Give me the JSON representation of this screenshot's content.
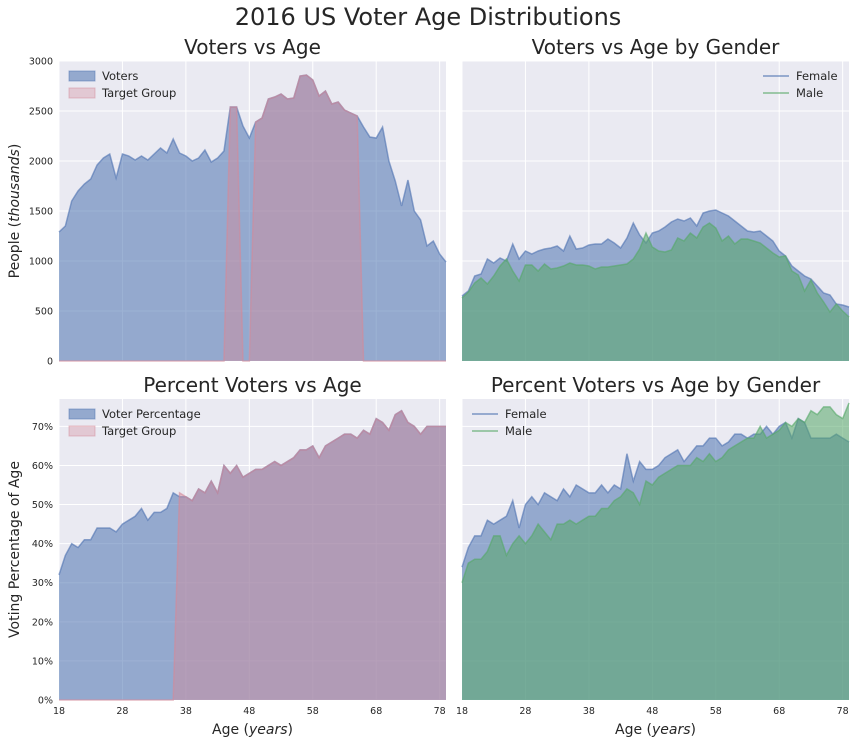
{
  "figure": {
    "suptitle": "2016 US Voter Age Distributions"
  },
  "colors": {
    "blue": "#4c72b0",
    "red": "#d48a9a",
    "green": "#55a868",
    "panel_bg": "#eaeaf2",
    "grid": "#ffffff"
  },
  "chart_data": [
    {
      "id": "voters",
      "type": "area",
      "title": "Voters vs Age",
      "ylabel": "People (thousands)",
      "xlim": [
        18,
        79
      ],
      "ylim": [
        0,
        3000
      ],
      "yticks": [
        0,
        500,
        1000,
        1500,
        2000,
        2500,
        3000
      ],
      "ytick_labels": [
        "0",
        "500",
        "1000",
        "1500",
        "2000",
        "2500",
        "3000"
      ],
      "legend": "top-left",
      "x": [
        18,
        19,
        20,
        21,
        22,
        23,
        24,
        25,
        26,
        27,
        28,
        29,
        30,
        31,
        32,
        33,
        34,
        35,
        36,
        37,
        38,
        39,
        40,
        41,
        42,
        43,
        44,
        45,
        46,
        47,
        48,
        49,
        50,
        51,
        52,
        53,
        54,
        55,
        56,
        57,
        58,
        59,
        60,
        61,
        62,
        63,
        64,
        65,
        66,
        67,
        68,
        69,
        70,
        71,
        72,
        73,
        74,
        75,
        76,
        77,
        78,
        79
      ],
      "series": [
        {
          "name": "Voters",
          "color": "blue",
          "values": [
            1290,
            1350,
            1600,
            1700,
            1770,
            1820,
            1960,
            2030,
            2070,
            1830,
            2070,
            2050,
            2010,
            2050,
            2010,
            2070,
            2130,
            2080,
            2220,
            2080,
            2050,
            2000,
            2030,
            2110,
            1990,
            2030,
            2100,
            2540,
            2540,
            2350,
            2230,
            2390,
            2430,
            2620,
            2640,
            2670,
            2620,
            2630,
            2850,
            2860,
            2810,
            2650,
            2700,
            2570,
            2590,
            2510,
            2480,
            2450,
            2340,
            2240,
            2230,
            2340,
            2000,
            1800,
            1550,
            1810,
            1500,
            1410,
            1150,
            1200,
            1070,
            990
          ]
        },
        {
          "name": "Target Group",
          "color": "red",
          "values": [
            0,
            0,
            0,
            0,
            0,
            0,
            0,
            0,
            0,
            0,
            0,
            0,
            0,
            0,
            0,
            0,
            0,
            0,
            0,
            0,
            0,
            0,
            0,
            0,
            0,
            0,
            0,
            2540,
            2540,
            0,
            0,
            2390,
            2430,
            2620,
            2640,
            2670,
            2620,
            2630,
            2850,
            2860,
            2810,
            2650,
            2700,
            2570,
            2590,
            2510,
            2480,
            2450,
            0,
            0,
            0,
            0,
            0,
            0,
            0,
            0,
            0,
            0,
            0,
            0,
            0,
            0
          ]
        }
      ]
    },
    {
      "id": "voters_gender",
      "type": "area",
      "title": "Voters vs Age by Gender",
      "xlim": [
        18,
        79
      ],
      "ylim": [
        0,
        3000
      ],
      "legend": "top-right",
      "x": [
        18,
        19,
        20,
        21,
        22,
        23,
        24,
        25,
        26,
        27,
        28,
        29,
        30,
        31,
        32,
        33,
        34,
        35,
        36,
        37,
        38,
        39,
        40,
        41,
        42,
        43,
        44,
        45,
        46,
        47,
        48,
        49,
        50,
        51,
        52,
        53,
        54,
        55,
        56,
        57,
        58,
        59,
        60,
        61,
        62,
        63,
        64,
        65,
        66,
        67,
        68,
        69,
        70,
        71,
        72,
        73,
        74,
        75,
        76,
        77,
        78,
        79
      ],
      "series": [
        {
          "name": "Female",
          "color": "blue",
          "values": [
            650,
            700,
            850,
            870,
            1020,
            980,
            1030,
            1000,
            1170,
            1020,
            1100,
            1070,
            1100,
            1120,
            1130,
            1150,
            1100,
            1250,
            1120,
            1130,
            1160,
            1170,
            1170,
            1220,
            1180,
            1130,
            1230,
            1380,
            1260,
            1180,
            1280,
            1300,
            1340,
            1390,
            1420,
            1400,
            1430,
            1350,
            1480,
            1500,
            1510,
            1480,
            1450,
            1400,
            1350,
            1300,
            1290,
            1300,
            1250,
            1200,
            1100,
            1050,
            950,
            900,
            850,
            820,
            750,
            680,
            660,
            570,
            560,
            540
          ]
        },
        {
          "name": "Male",
          "color": "green",
          "values": [
            630,
            690,
            780,
            830,
            770,
            850,
            950,
            1020,
            900,
            800,
            960,
            960,
            900,
            970,
            920,
            930,
            950,
            980,
            960,
            960,
            950,
            920,
            940,
            940,
            950,
            960,
            970,
            1020,
            1120,
            1280,
            1140,
            1100,
            1090,
            1110,
            1230,
            1200,
            1280,
            1230,
            1340,
            1380,
            1330,
            1200,
            1250,
            1170,
            1220,
            1220,
            1200,
            1180,
            1130,
            1080,
            1040,
            1050,
            900,
            860,
            700,
            810,
            680,
            590,
            490,
            570,
            500,
            440
          ]
        }
      ]
    },
    {
      "id": "percent",
      "type": "area",
      "title": "Percent Voters vs Age",
      "ylabel": "Voting Percentage of Age",
      "xlabel": "Age (years)",
      "xlim": [
        18,
        79
      ],
      "ylim": [
        0,
        77
      ],
      "xticks": [
        18,
        28,
        38,
        48,
        58,
        68,
        78
      ],
      "xtick_labels": [
        "18",
        "28",
        "38",
        "48",
        "58",
        "68",
        "78"
      ],
      "yticks": [
        0,
        10,
        20,
        30,
        40,
        50,
        60,
        70
      ],
      "ytick_labels": [
        "0%",
        "10%",
        "20%",
        "30%",
        "40%",
        "50%",
        "60%",
        "70%"
      ],
      "legend": "top-left",
      "x": [
        18,
        19,
        20,
        21,
        22,
        23,
        24,
        25,
        26,
        27,
        28,
        29,
        30,
        31,
        32,
        33,
        34,
        35,
        36,
        37,
        38,
        39,
        40,
        41,
        42,
        43,
        44,
        45,
        46,
        47,
        48,
        49,
        50,
        51,
        52,
        53,
        54,
        55,
        56,
        57,
        58,
        59,
        60,
        61,
        62,
        63,
        64,
        65,
        66,
        67,
        68,
        69,
        70,
        71,
        72,
        73,
        74,
        75,
        76,
        77,
        78,
        79
      ],
      "series": [
        {
          "name": "Voter Percentage",
          "color": "blue",
          "values": [
            32,
            37,
            40,
            39,
            41,
            41,
            44,
            44,
            44,
            43,
            45,
            46,
            47,
            49,
            46,
            48,
            48,
            49,
            53,
            52,
            52,
            51,
            54,
            53,
            56,
            53,
            60,
            58,
            60,
            57,
            58,
            59,
            59,
            60,
            61,
            60,
            61,
            62,
            64,
            64,
            65,
            62,
            65,
            66,
            67,
            68,
            68,
            67,
            69,
            68,
            72,
            71,
            69,
            73,
            74,
            71,
            70,
            68,
            70,
            70,
            70,
            70
          ]
        },
        {
          "name": "Target Group",
          "color": "red",
          "values": [
            0,
            0,
            0,
            0,
            0,
            0,
            0,
            0,
            0,
            0,
            0,
            0,
            0,
            0,
            0,
            0,
            0,
            0,
            0,
            53,
            52,
            51,
            54,
            53,
            56,
            53,
            60,
            58,
            60,
            57,
            58,
            59,
            59,
            60,
            61,
            60,
            61,
            62,
            64,
            64,
            65,
            62,
            65,
            66,
            67,
            68,
            68,
            67,
            69,
            68,
            72,
            71,
            69,
            73,
            74,
            71,
            70,
            68,
            70,
            70,
            70,
            70
          ]
        }
      ]
    },
    {
      "id": "percent_gender",
      "type": "area",
      "title": "Percent Voters vs Age by Gender",
      "xlabel": "Age (years)",
      "xlim": [
        18,
        79
      ],
      "ylim": [
        0,
        77
      ],
      "xticks": [
        18,
        28,
        38,
        48,
        58,
        68,
        78
      ],
      "xtick_labels": [
        "18",
        "28",
        "38",
        "48",
        "58",
        "68",
        "78"
      ],
      "legend": "top-left",
      "x": [
        18,
        19,
        20,
        21,
        22,
        23,
        24,
        25,
        26,
        27,
        28,
        29,
        30,
        31,
        32,
        33,
        34,
        35,
        36,
        37,
        38,
        39,
        40,
        41,
        42,
        43,
        44,
        45,
        46,
        47,
        48,
        49,
        50,
        51,
        52,
        53,
        54,
        55,
        56,
        57,
        58,
        59,
        60,
        61,
        62,
        63,
        64,
        65,
        66,
        67,
        68,
        69,
        70,
        71,
        72,
        73,
        74,
        75,
        76,
        77,
        78,
        79
      ],
      "series": [
        {
          "name": "Female",
          "color": "blue",
          "values": [
            34,
            39,
            42,
            42,
            46,
            45,
            46,
            47,
            51,
            44,
            50,
            52,
            50,
            53,
            52,
            51,
            54,
            52,
            55,
            54,
            53,
            53,
            55,
            53,
            55,
            54,
            63,
            56,
            61,
            59,
            59,
            60,
            62,
            63,
            64,
            61,
            63,
            65,
            65,
            67,
            67,
            65,
            66,
            68,
            68,
            67,
            68,
            68,
            70,
            68,
            70,
            71,
            67,
            72,
            71,
            67,
            67,
            67,
            67,
            68,
            67,
            66
          ]
        },
        {
          "name": "Male",
          "color": "green",
          "values": [
            30,
            35,
            36,
            36,
            38,
            42,
            42,
            37,
            40,
            42,
            40,
            42,
            45,
            43,
            41,
            45,
            45,
            46,
            45,
            46,
            47,
            47,
            49,
            49,
            51,
            52,
            54,
            53,
            50,
            56,
            55,
            57,
            58,
            59,
            60,
            60,
            60,
            62,
            61,
            63,
            61,
            62,
            64,
            65,
            66,
            67,
            67,
            70,
            67,
            68,
            69,
            71,
            70,
            72,
            71,
            74,
            73,
            75,
            75,
            73,
            72,
            76
          ]
        }
      ]
    }
  ]
}
